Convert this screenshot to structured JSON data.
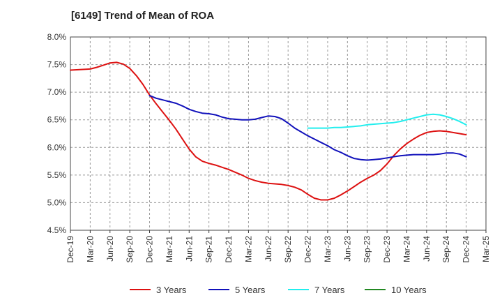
{
  "chart_data": {
    "type": "line",
    "title": "[6149]  Trend of Mean of ROA",
    "xlabel": "",
    "ylabel": "",
    "x_tick_labels": [
      "Dec-19",
      "Mar-20",
      "Jun-20",
      "Sep-20",
      "Dec-20",
      "Mar-21",
      "Jun-21",
      "Sep-21",
      "Dec-21",
      "Mar-22",
      "Jun-22",
      "Sep-22",
      "Dec-22",
      "Mar-23",
      "Jun-23",
      "Sep-23",
      "Dec-23",
      "Mar-24",
      "Jun-24",
      "Sep-24",
      "Dec-24",
      "Mar-25"
    ],
    "y_tick_labels": [
      "4.5%",
      "5.0%",
      "5.5%",
      "6.0%",
      "6.5%",
      "7.0%",
      "7.5%",
      "8.0%"
    ],
    "ylim": [
      4.5,
      8.0
    ],
    "grid": "horizontal dashed",
    "legend_position": "bottom",
    "series": [
      {
        "name": "3 Years",
        "color": "#dd1111",
        "points": [
          [
            "Dec-19",
            7.4
          ],
          [
            "Mar-20",
            7.42
          ],
          [
            "Apr-20",
            7.45
          ],
          [
            "May-20",
            7.49
          ],
          [
            "Jun-20",
            7.53
          ],
          [
            "Jul-20",
            7.54
          ],
          [
            "Aug-20",
            7.51
          ],
          [
            "Sep-20",
            7.43
          ],
          [
            "Oct-20",
            7.3
          ],
          [
            "Nov-20",
            7.14
          ],
          [
            "Dec-20",
            6.95
          ],
          [
            "Jan-21",
            6.79
          ],
          [
            "Feb-21",
            6.64
          ],
          [
            "Mar-21",
            6.49
          ],
          [
            "Apr-21",
            6.33
          ],
          [
            "May-21",
            6.15
          ],
          [
            "Jun-21",
            5.97
          ],
          [
            "Jul-21",
            5.83
          ],
          [
            "Aug-21",
            5.75
          ],
          [
            "Sep-21",
            5.71
          ],
          [
            "Oct-21",
            5.68
          ],
          [
            "Nov-21",
            5.64
          ],
          [
            "Dec-21",
            5.6
          ],
          [
            "Jan-22",
            5.55
          ],
          [
            "Feb-22",
            5.5
          ],
          [
            "Mar-22",
            5.44
          ],
          [
            "Apr-22",
            5.4
          ],
          [
            "May-22",
            5.37
          ],
          [
            "Jun-22",
            5.35
          ],
          [
            "Jul-22",
            5.34
          ],
          [
            "Aug-22",
            5.33
          ],
          [
            "Sep-22",
            5.31
          ],
          [
            "Oct-22",
            5.28
          ],
          [
            "Nov-22",
            5.23
          ],
          [
            "Dec-22",
            5.15
          ],
          [
            "Jan-23",
            5.08
          ],
          [
            "Feb-23",
            5.05
          ],
          [
            "Mar-23",
            5.05
          ],
          [
            "Apr-23",
            5.08
          ],
          [
            "May-23",
            5.14
          ],
          [
            "Jun-23",
            5.21
          ],
          [
            "Jul-23",
            5.29
          ],
          [
            "Aug-23",
            5.37
          ],
          [
            "Sep-23",
            5.44
          ],
          [
            "Oct-23",
            5.5
          ],
          [
            "Nov-23",
            5.58
          ],
          [
            "Dec-23",
            5.7
          ],
          [
            "Jan-24",
            5.85
          ],
          [
            "Feb-24",
            5.97
          ],
          [
            "Mar-24",
            6.07
          ],
          [
            "Apr-24",
            6.15
          ],
          [
            "May-24",
            6.22
          ],
          [
            "Jun-24",
            6.27
          ],
          [
            "Jul-24",
            6.29
          ],
          [
            "Aug-24",
            6.3
          ],
          [
            "Sep-24",
            6.29
          ],
          [
            "Oct-24",
            6.27
          ],
          [
            "Nov-24",
            6.25
          ],
          [
            "Dec-24",
            6.23
          ]
        ]
      },
      {
        "name": "5 Years",
        "color": "#1111bb",
        "points": [
          [
            "Dec-20",
            6.94
          ],
          [
            "Jan-21",
            6.89
          ],
          [
            "Feb-21",
            6.86
          ],
          [
            "Mar-21",
            6.83
          ],
          [
            "Apr-21",
            6.8
          ],
          [
            "May-21",
            6.75
          ],
          [
            "Jun-21",
            6.69
          ],
          [
            "Jul-21",
            6.65
          ],
          [
            "Aug-21",
            6.62
          ],
          [
            "Sep-21",
            6.61
          ],
          [
            "Oct-21",
            6.59
          ],
          [
            "Nov-21",
            6.55
          ],
          [
            "Dec-21",
            6.52
          ],
          [
            "Jan-22",
            6.51
          ],
          [
            "Feb-22",
            6.5
          ],
          [
            "Mar-22",
            6.5
          ],
          [
            "Apr-22",
            6.51
          ],
          [
            "May-22",
            6.54
          ],
          [
            "Jun-22",
            6.57
          ],
          [
            "Jul-22",
            6.56
          ],
          [
            "Aug-22",
            6.52
          ],
          [
            "Sep-22",
            6.44
          ],
          [
            "Oct-22",
            6.35
          ],
          [
            "Nov-22",
            6.28
          ],
          [
            "Dec-22",
            6.21
          ],
          [
            "Jan-23",
            6.15
          ],
          [
            "Feb-23",
            6.09
          ],
          [
            "Mar-23",
            6.03
          ],
          [
            "Apr-23",
            5.96
          ],
          [
            "May-23",
            5.91
          ],
          [
            "Jun-23",
            5.85
          ],
          [
            "Jul-23",
            5.8
          ],
          [
            "Aug-23",
            5.78
          ],
          [
            "Sep-23",
            5.77
          ],
          [
            "Oct-23",
            5.78
          ],
          [
            "Nov-23",
            5.79
          ],
          [
            "Dec-23",
            5.81
          ],
          [
            "Jan-24",
            5.83
          ],
          [
            "Feb-24",
            5.85
          ],
          [
            "Mar-24",
            5.86
          ],
          [
            "Apr-24",
            5.87
          ],
          [
            "May-24",
            5.87
          ],
          [
            "Jun-24",
            5.87
          ],
          [
            "Jul-24",
            5.87
          ],
          [
            "Aug-24",
            5.88
          ],
          [
            "Sep-24",
            5.9
          ],
          [
            "Oct-24",
            5.9
          ],
          [
            "Nov-24",
            5.88
          ],
          [
            "Dec-24",
            5.83
          ]
        ]
      },
      {
        "name": "7 Years",
        "color": "#22eeee",
        "points": [
          [
            "Dec-22",
            6.35
          ],
          [
            "Jan-23",
            6.35
          ],
          [
            "Feb-23",
            6.35
          ],
          [
            "Mar-23",
            6.35
          ],
          [
            "Apr-23",
            6.36
          ],
          [
            "May-23",
            6.36
          ],
          [
            "Jun-23",
            6.37
          ],
          [
            "Jul-23",
            6.38
          ],
          [
            "Aug-23",
            6.39
          ],
          [
            "Sep-23",
            6.41
          ],
          [
            "Oct-23",
            6.42
          ],
          [
            "Nov-23",
            6.43
          ],
          [
            "Dec-23",
            6.44
          ],
          [
            "Jan-24",
            6.45
          ],
          [
            "Feb-24",
            6.47
          ],
          [
            "Mar-24",
            6.5
          ],
          [
            "Apr-24",
            6.53
          ],
          [
            "May-24",
            6.56
          ],
          [
            "Jun-24",
            6.59
          ],
          [
            "Jul-24",
            6.6
          ],
          [
            "Aug-24",
            6.59
          ],
          [
            "Sep-24",
            6.56
          ],
          [
            "Oct-24",
            6.52
          ],
          [
            "Nov-24",
            6.47
          ],
          [
            "Dec-24",
            6.41
          ]
        ]
      },
      {
        "name": "10 Years",
        "color": "#228822",
        "points": []
      }
    ]
  }
}
